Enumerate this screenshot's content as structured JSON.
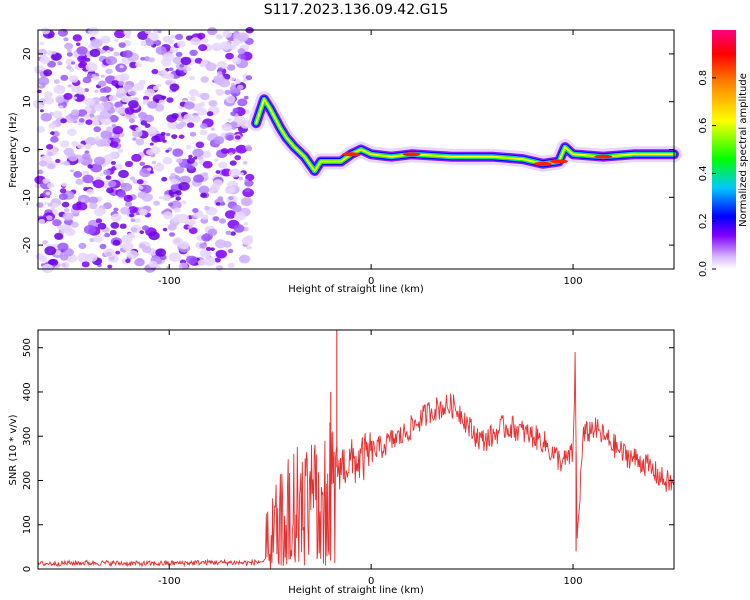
{
  "figure_title": "S117.2023.136.09.42.G15",
  "chart_data": [
    {
      "type": "heatmap",
      "xlabel": "Height of straight line (km)",
      "ylabel": "Frequency (Hz)",
      "xlim": [
        -165,
        150
      ],
      "ylim": [
        -25,
        25
      ],
      "x_ticks": [
        -100,
        0,
        100
      ],
      "y_ticks": [
        -20,
        -10,
        0,
        10,
        20
      ],
      "colorbar": {
        "label": "Normalized spectral amplitude",
        "range": [
          0,
          1
        ],
        "ticks": [
          "0.0",
          "0.2",
          "0.4",
          "0.6",
          "0.8"
        ],
        "tick_values": [
          0,
          0.2,
          0.4,
          0.6,
          0.8
        ]
      },
      "colormap_hex": [
        "#ffffff",
        "#d8b8ff",
        "#8000ff",
        "#0000ff",
        "#00c8ff",
        "#00ff00",
        "#ffff00",
        "#ff8000",
        "#ff0000",
        "#ff0080"
      ],
      "noise_region_x": [
        -165,
        -60
      ],
      "signal_track": [
        {
          "x": -57,
          "f": 5.5
        },
        {
          "x": -53,
          "f": 10.5
        },
        {
          "x": -50,
          "f": 8.5
        },
        {
          "x": -45,
          "f": 4.5
        },
        {
          "x": -42,
          "f": 2.5
        },
        {
          "x": -38,
          "f": 0.5
        },
        {
          "x": -33,
          "f": -1.5
        },
        {
          "x": -28,
          "f": -4.5
        },
        {
          "x": -25,
          "f": -2.5
        },
        {
          "x": -15,
          "f": -2.5
        },
        {
          "x": -10,
          "f": -1.0
        },
        {
          "x": -5,
          "f": 0.0
        },
        {
          "x": 0,
          "f": -1.0
        },
        {
          "x": 10,
          "f": -1.5
        },
        {
          "x": 20,
          "f": -1.0
        },
        {
          "x": 40,
          "f": -1.5
        },
        {
          "x": 60,
          "f": -1.5
        },
        {
          "x": 75,
          "f": -2.0
        },
        {
          "x": 85,
          "f": -3.0
        },
        {
          "x": 93,
          "f": -2.5
        },
        {
          "x": 96,
          "f": 0.5
        },
        {
          "x": 100,
          "f": -1.0
        },
        {
          "x": 115,
          "f": -1.5
        },
        {
          "x": 130,
          "f": -1.0
        },
        {
          "x": 150,
          "f": -1.0
        }
      ]
    },
    {
      "type": "line",
      "xlabel": "Height of straight line (km)",
      "ylabel": "SNR (10 * v/v)",
      "xlim": [
        -165,
        150
      ],
      "ylim": [
        0,
        540
      ],
      "x_ticks": [
        -100,
        0,
        100
      ],
      "y_ticks": [
        0,
        100,
        200,
        300,
        400,
        500
      ],
      "line_color": "#e83030",
      "series": [
        {
          "x": [
            -165,
            -140,
            -110,
            -80,
            -60,
            -52,
            -48,
            -44,
            -40,
            -36,
            -32,
            -28,
            -24,
            -20,
            -17,
            -14,
            -10,
            -5,
            0,
            5,
            10,
            15,
            20,
            25,
            30,
            35,
            40,
            45,
            50,
            55,
            60,
            65,
            70,
            75,
            80,
            85,
            90,
            95,
            100,
            101,
            102,
            105,
            110,
            115,
            120,
            125,
            130,
            135,
            140,
            145,
            150
          ],
          "y": [
            12,
            14,
            12,
            15,
            14,
            18,
            70,
            120,
            160,
            180,
            200,
            210,
            220,
            225,
            230,
            235,
            240,
            245,
            265,
            275,
            290,
            300,
            320,
            340,
            360,
            365,
            370,
            350,
            310,
            290,
            300,
            320,
            320,
            310,
            300,
            290,
            260,
            240,
            260,
            470,
            60,
            300,
            320,
            300,
            280,
            260,
            250,
            240,
            220,
            200,
            190
          ]
        }
      ],
      "spikes": [
        {
          "x": -17,
          "y": 540
        },
        {
          "x": -20,
          "y": 400
        },
        {
          "x": 101,
          "y": 470
        },
        {
          "x": 101.5,
          "y": 40
        }
      ]
    }
  ]
}
